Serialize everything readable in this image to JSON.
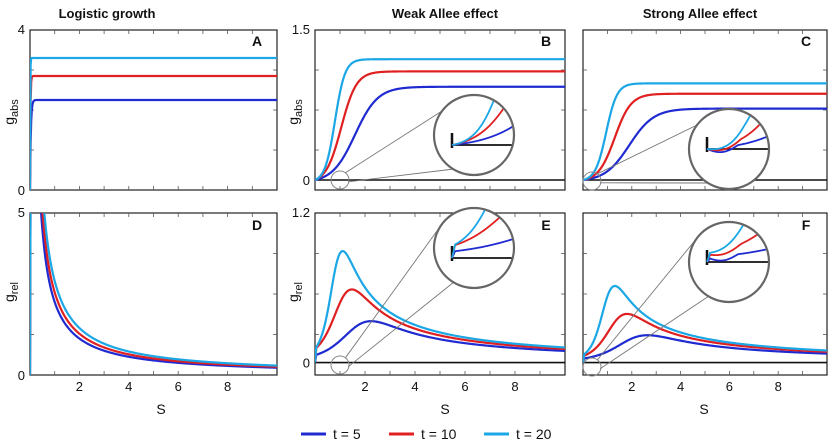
{
  "colors": {
    "t5": "#1f2bd1",
    "t10": "#e02020",
    "t20": "#1ba7e6",
    "zoom_stroke": "#888888"
  },
  "legend": {
    "items": [
      {
        "label": "t = 5",
        "color": "#1f2bd1"
      },
      {
        "label": "t = 10",
        "color": "#e02020"
      },
      {
        "label": "t = 20",
        "color": "#1ba7e6"
      }
    ]
  },
  "chart_data": [
    {
      "id": "A",
      "type": "line",
      "column_title": "Logistic growth",
      "xlabel": "",
      "ylabel": "g_abs",
      "xlim": [
        0,
        10
      ],
      "ylim": [
        0,
        4
      ],
      "yticks": [
        {
          "v": 0,
          "label": "0"
        },
        {
          "v": 4,
          "label": "4"
        }
      ],
      "xticks": [],
      "series": [
        {
          "name": "t = 5",
          "plateau": 2.25,
          "rate": 30,
          "shape": "sat"
        },
        {
          "name": "t = 10",
          "plateau": 2.85,
          "rate": 60,
          "shape": "sat"
        },
        {
          "name": "t = 20",
          "plateau": 3.3,
          "rate": 120,
          "shape": "sat"
        }
      ]
    },
    {
      "id": "B",
      "type": "line",
      "column_title": "Weak Allee effect",
      "xlabel": "",
      "ylabel": "g_abs",
      "xlim": [
        0,
        10
      ],
      "ylim": [
        -0.1,
        1.5
      ],
      "yticks": [
        {
          "v": 0,
          "label": "0"
        },
        {
          "v": 1.5,
          "label": "1.5"
        }
      ],
      "xticks": [],
      "zero_line": true,
      "series": [
        {
          "name": "t = 5",
          "plateau": 0.96,
          "mid": 1.6,
          "k": 2.2,
          "shape": "sig"
        },
        {
          "name": "t = 10",
          "plateau": 1.12,
          "mid": 1.05,
          "k": 3.3,
          "shape": "sig"
        },
        {
          "name": "t = 20",
          "plateau": 1.23,
          "mid": 0.8,
          "k": 5,
          "shape": "sig"
        }
      ]
    },
    {
      "id": "C",
      "type": "line",
      "column_title": "Strong Allee effect",
      "xlabel": "",
      "ylabel": "",
      "xlim": [
        0,
        10
      ],
      "ylim": [
        -0.1,
        1.5
      ],
      "yticks": [],
      "xticks": [],
      "zero_line": true,
      "series": [
        {
          "name": "t = 5",
          "plateau": 0.73,
          "mid": 1.9,
          "k": 2,
          "shape": "sig"
        },
        {
          "name": "t = 10",
          "plateau": 0.88,
          "mid": 1.3,
          "k": 3,
          "shape": "sig"
        },
        {
          "name": "t = 20",
          "plateau": 0.98,
          "mid": 0.95,
          "k": 4.5,
          "shape": "sig"
        }
      ]
    },
    {
      "id": "D",
      "type": "line",
      "column_title": "",
      "xlabel": "S",
      "ylabel": "g_rel",
      "xlim": [
        0,
        10
      ],
      "ylim": [
        0,
        5
      ],
      "yticks": [
        {
          "v": 0,
          "label": "0"
        },
        {
          "v": 5,
          "label": "5"
        }
      ],
      "xticks": [
        {
          "v": 2,
          "label": "2"
        },
        {
          "v": 4,
          "label": "4"
        },
        {
          "v": 6,
          "label": "6"
        },
        {
          "v": 8,
          "label": "8"
        }
      ],
      "series": [
        {
          "name": "t = 5",
          "a": 2.25,
          "rate": 30,
          "shape": "ratio"
        },
        {
          "name": "t = 10",
          "a": 2.55,
          "rate": 60,
          "shape": "ratio"
        },
        {
          "name": "t = 20",
          "a": 2.9,
          "rate": 120,
          "shape": "ratio"
        }
      ]
    },
    {
      "id": "E",
      "type": "line",
      "column_title": "",
      "xlabel": "S",
      "ylabel": "g_rel",
      "xlim": [
        0,
        10
      ],
      "ylim": [
        -0.1,
        1.2
      ],
      "yticks": [
        {
          "v": 0,
          "label": "0"
        },
        {
          "v": 1.2,
          "label": "1.2"
        }
      ],
      "xticks": [
        {
          "v": 2,
          "label": "2"
        },
        {
          "v": 4,
          "label": "4"
        },
        {
          "v": 6,
          "label": "6"
        },
        {
          "v": 8,
          "label": "8"
        }
      ],
      "zero_line": true,
      "series": [
        {
          "name": "t = 5",
          "plateau": 0.96,
          "mid": 1.6,
          "k": 2.2,
          "shape": "sigratio"
        },
        {
          "name": "t = 10",
          "plateau": 1.12,
          "mid": 1.05,
          "k": 3.3,
          "shape": "sigratio"
        },
        {
          "name": "t = 20",
          "plateau": 1.23,
          "mid": 0.8,
          "k": 5,
          "shape": "sigratio"
        }
      ]
    },
    {
      "id": "F",
      "type": "line",
      "column_title": "",
      "xlabel": "S",
      "ylabel": "",
      "xlim": [
        0,
        10
      ],
      "ylim": [
        -0.1,
        1.2
      ],
      "yticks": [],
      "xticks": [
        {
          "v": 2,
          "label": "2"
        },
        {
          "v": 4,
          "label": "4"
        },
        {
          "v": 6,
          "label": "6"
        },
        {
          "v": 8,
          "label": "8"
        }
      ],
      "zero_line": true,
      "series": [
        {
          "name": "t = 5",
          "plateau": 0.73,
          "mid": 1.9,
          "k": 2,
          "shape": "sigratio"
        },
        {
          "name": "t = 10",
          "plateau": 0.88,
          "mid": 1.3,
          "k": 3,
          "shape": "sigratio"
        },
        {
          "name": "t = 20",
          "plateau": 0.98,
          "mid": 0.95,
          "k": 4.5,
          "shape": "sigratio"
        }
      ]
    }
  ]
}
